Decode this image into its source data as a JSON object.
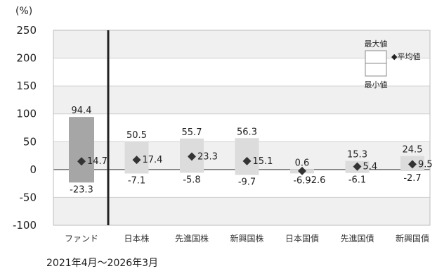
{
  "chart_data": {
    "type": "range-bar",
    "unit": "(%)",
    "ylim": [
      -100,
      250
    ],
    "yticks": [
      250,
      200,
      150,
      100,
      50,
      0,
      -50,
      -100
    ],
    "categories": [
      "ファンド",
      "日本株",
      "先進国株",
      "新興国株",
      "日本国債",
      "先進国債",
      "新興国債"
    ],
    "max": [
      94.4,
      50.5,
      55.7,
      56.3,
      0.6,
      15.3,
      24.5
    ],
    "avg": [
      14.7,
      17.4,
      23.3,
      15.1,
      -2.6,
      5.4,
      9.5
    ],
    "min": [
      -23.3,
      -7.1,
      -5.8,
      -9.7,
      -6.9,
      -6.1,
      -2.7
    ],
    "max_labels": [
      "94.4",
      "50.5",
      "55.7",
      "56.3",
      "0.6",
      "15.3",
      "24.5"
    ],
    "avg_labels": [
      "14.7",
      "17.4",
      "23.3",
      "15.1",
      "-2.6",
      "5.4",
      "9.5"
    ],
    "min_labels": [
      "-23.3",
      "-7.1",
      "-5.8",
      "-9.7",
      "-6.9",
      "-6.1",
      "-2.7"
    ],
    "legend": {
      "max": "最大値",
      "min": "最小値",
      "avg": "◆平均値"
    },
    "period": "2021年4月～2026年3月",
    "colors": {
      "fund_bar": "#a6a6a6",
      "bar": "#dcdcdc",
      "marker": "#333333",
      "band": "#f0f0f0"
    }
  }
}
